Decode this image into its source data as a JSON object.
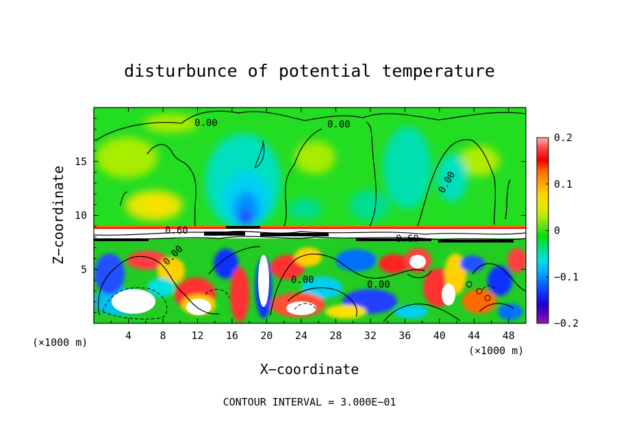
{
  "chart_data": {
    "type": "heatmap",
    "title": "disturbunce of potential temperature",
    "xlabel": "X−coordinate",
    "ylabel": "Z−coordinate",
    "x_unit_label": "(×1000 m)",
    "y_unit_label": "(×1000 m)",
    "xlim": [
      0,
      50
    ],
    "ylim": [
      0,
      20
    ],
    "x_ticks": [
      4,
      8,
      12,
      16,
      20,
      24,
      28,
      32,
      36,
      40,
      44,
      48
    ],
    "y_ticks": [
      5,
      10,
      15
    ],
    "colorbar": {
      "range": [
        -0.2,
        0.2
      ],
      "tick_labels": [
        "0.2",
        "0.1",
        "0",
        "−0.1",
        "−0.2"
      ],
      "tick_values": [
        0.2,
        0.1,
        0,
        -0.1,
        -0.2
      ],
      "colors": [
        "#ffb0b0",
        "#ff4040",
        "#ee0000",
        "#ff6a00",
        "#ffa000",
        "#ffd000",
        "#e8e800",
        "#b8ee00",
        "#70e000",
        "#30d030",
        "#00e000",
        "#00dd90",
        "#00e0e0",
        "#00b0ff",
        "#0070ff",
        "#1030ff",
        "#2000d0",
        "#6000c0",
        "#9020b0"
      ]
    },
    "contour_labels": [
      "0.00",
      "0.00",
      "0.00",
      "0.60",
      "0.60",
      "0.00",
      "0.00",
      "0.00"
    ],
    "footnote": "CONTOUR INTERVAL = 3.000E−01"
  }
}
